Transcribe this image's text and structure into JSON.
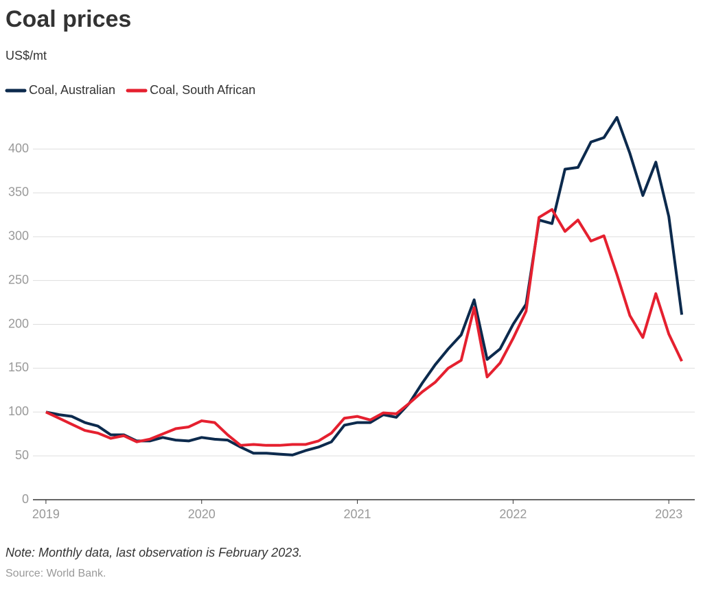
{
  "chart_data": {
    "type": "line",
    "title": "Coal prices",
    "subtitle": "US$/mt",
    "note": "Note: Monthly data, last observation is February 2023.",
    "source": "Source: World Bank.",
    "x": [
      "2019-01",
      "2019-02",
      "2019-03",
      "2019-04",
      "2019-05",
      "2019-06",
      "2019-07",
      "2019-08",
      "2019-09",
      "2019-10",
      "2019-11",
      "2019-12",
      "2020-01",
      "2020-02",
      "2020-03",
      "2020-04",
      "2020-05",
      "2020-06",
      "2020-07",
      "2020-08",
      "2020-09",
      "2020-10",
      "2020-11",
      "2020-12",
      "2021-01",
      "2021-02",
      "2021-03",
      "2021-04",
      "2021-05",
      "2021-06",
      "2021-07",
      "2021-08",
      "2021-09",
      "2021-10",
      "2021-11",
      "2021-12",
      "2022-01",
      "2022-02",
      "2022-03",
      "2022-04",
      "2022-05",
      "2022-06",
      "2022-07",
      "2022-08",
      "2022-09",
      "2022-10",
      "2022-11",
      "2022-12",
      "2023-01",
      "2023-02"
    ],
    "series": [
      {
        "name": "Coal, Australian",
        "color": "#0c2a4d",
        "values": [
          100,
          97,
          95,
          88,
          84,
          74,
          74,
          67,
          67,
          71,
          68,
          67,
          71,
          69,
          68,
          60,
          53,
          53,
          52,
          51,
          56,
          60,
          66,
          85,
          88,
          88,
          97,
          94,
          110,
          133,
          154,
          172,
          188,
          228,
          160,
          172,
          200,
          223,
          319,
          315,
          377,
          379,
          408,
          413,
          436,
          395,
          347,
          385,
          323,
          211
        ]
      },
      {
        "name": "Coal, South African",
        "color": "#e5202f",
        "values": [
          100,
          93,
          86,
          79,
          76,
          70,
          73,
          66,
          69,
          75,
          81,
          83,
          90,
          88,
          74,
          62,
          63,
          62,
          62,
          63,
          63,
          67,
          76,
          93,
          95,
          91,
          99,
          98,
          110,
          123,
          134,
          150,
          159,
          219,
          140,
          156,
          184,
          215,
          322,
          331,
          306,
          319,
          295,
          301,
          257,
          210,
          185,
          235,
          189,
          158
        ]
      }
    ],
    "xlim": [
      "2018-12",
      "2023-03"
    ],
    "xticks": [
      {
        "value": "2019-01",
        "label": "2019"
      },
      {
        "value": "2020-01",
        "label": "2020"
      },
      {
        "value": "2021-01",
        "label": "2021"
      },
      {
        "value": "2022-01",
        "label": "2022"
      },
      {
        "value": "2023-01",
        "label": "2023"
      }
    ],
    "ylim": [
      0,
      440
    ],
    "yticks": [
      0,
      50,
      100,
      150,
      200,
      250,
      300,
      350,
      400
    ],
    "grid": true
  }
}
